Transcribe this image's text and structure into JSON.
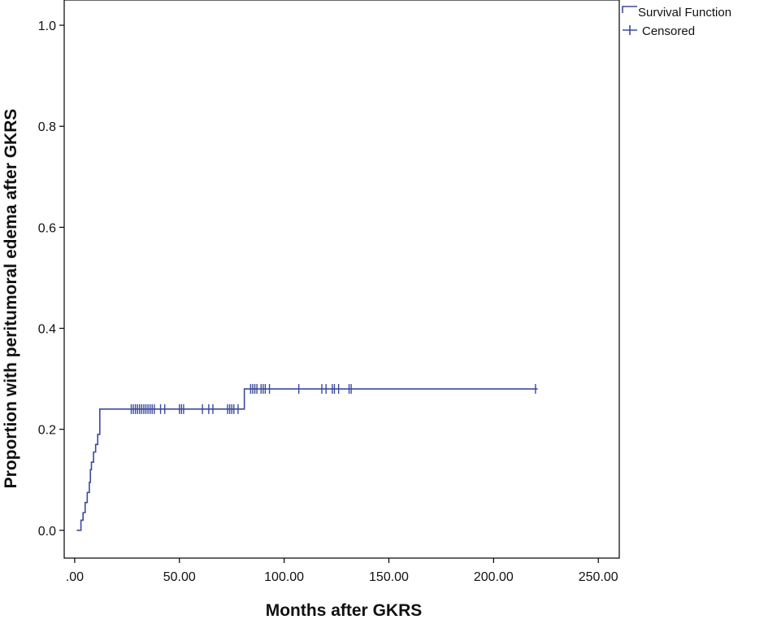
{
  "chart_data": {
    "type": "line",
    "title": "",
    "xlabel": "Months after GKRS",
    "ylabel": "Proportion with peritumoral edema after GKRS",
    "xlim": [
      -5,
      260
    ],
    "ylim": [
      -0.055,
      1.05
    ],
    "x_ticks": [
      0,
      50,
      100,
      150,
      200,
      250
    ],
    "x_tick_labels": [
      ".00",
      "50.00",
      "100.00",
      "150.00",
      "200.00",
      "250.00"
    ],
    "y_ticks": [
      0,
      0.2,
      0.4,
      0.6,
      0.8,
      1.0
    ],
    "y_tick_labels": [
      "0.0",
      "0.2",
      "0.4",
      "0.6",
      "0.8",
      "1.0"
    ],
    "grid": false,
    "legend_position": "top-right",
    "line_color": "#3b4a9c",
    "series": [
      {
        "name": "Survival Function",
        "style": "step",
        "x": [
          1,
          3,
          4,
          5,
          6,
          7,
          7.5,
          8,
          9,
          10,
          11,
          12,
          81,
          221
        ],
        "y": [
          0.0,
          0.02,
          0.035,
          0.055,
          0.075,
          0.095,
          0.12,
          0.135,
          0.155,
          0.17,
          0.19,
          0.24,
          0.28,
          0.28
        ]
      },
      {
        "name": "Censored",
        "style": "censor-marks",
        "x": [
          27,
          28,
          29,
          30,
          31,
          32,
          33,
          34,
          35,
          36,
          37,
          38,
          41,
          43,
          50,
          51,
          52,
          61,
          64,
          66,
          73,
          74,
          75,
          76,
          78,
          84,
          85,
          86,
          87,
          89,
          90,
          91,
          93,
          107,
          118,
          120,
          123,
          124,
          126,
          131,
          132,
          220
        ],
        "y": [
          0.24,
          0.24,
          0.24,
          0.24,
          0.24,
          0.24,
          0.24,
          0.24,
          0.24,
          0.24,
          0.24,
          0.24,
          0.24,
          0.24,
          0.24,
          0.24,
          0.24,
          0.24,
          0.24,
          0.24,
          0.24,
          0.24,
          0.24,
          0.24,
          0.24,
          0.28,
          0.28,
          0.28,
          0.28,
          0.28,
          0.28,
          0.28,
          0.28,
          0.28,
          0.28,
          0.28,
          0.28,
          0.28,
          0.28,
          0.28,
          0.28,
          0.28
        ]
      }
    ]
  }
}
